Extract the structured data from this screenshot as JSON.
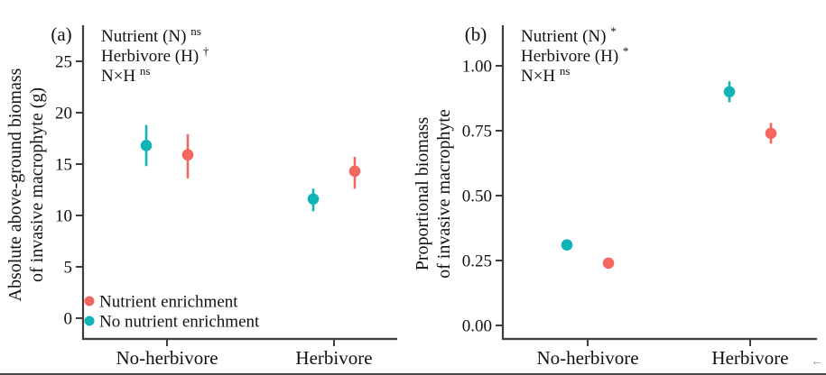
{
  "figure": {
    "bg": "#ffffff",
    "axis_color": "#3d3d3d",
    "text_color": "#121212",
    "bottom_edge_color": "#4a4a4a",
    "cursor_mark": "←"
  },
  "palette": {
    "enriched": "#f4675e",
    "control": "#12b3b6"
  },
  "legend": {
    "position": "inside bottom-left of panel a",
    "items": [
      {
        "key": "enriched",
        "label": "Nutrient enrichment"
      },
      {
        "key": "control",
        "label": "No nutrient enrichment"
      }
    ]
  },
  "chart_data": [
    {
      "type": "scatter",
      "panel_tag": "(a)",
      "title": "",
      "ylabel": "Absolute above-ground biomass of invasive macrophyte (g)",
      "ylabel_lines": [
        "Absolute above-ground biomass",
        "of invasive macrophyte (g)"
      ],
      "xlabel": "",
      "annotations": [
        {
          "text": "Nutrient (N)",
          "sup": "ns"
        },
        {
          "text": "Herbivore (H)",
          "sup": "†"
        },
        {
          "text": "N×H",
          "sup": "ns"
        }
      ],
      "categories": [
        "No-herbivore",
        "Herbivore"
      ],
      "yticks": [
        0,
        5,
        10,
        15,
        20,
        25
      ],
      "ytick_labels": [
        "0",
        "5",
        "10",
        "15",
        "20",
        "25"
      ],
      "ylim": [
        0,
        28
      ],
      "grid": false,
      "show_legend": true,
      "series": [
        {
          "name": "No nutrient enrichment",
          "key": "control",
          "values": [
            16.8,
            11.6
          ],
          "ci_low": [
            14.8,
            10.4
          ],
          "ci_high": [
            18.8,
            12.6
          ]
        },
        {
          "name": "Nutrient enrichment",
          "key": "enriched",
          "values": [
            15.9,
            14.3
          ],
          "ci_low": [
            13.6,
            12.6
          ],
          "ci_high": [
            17.9,
            15.7
          ]
        }
      ]
    },
    {
      "type": "scatter",
      "panel_tag": "(b)",
      "title": "",
      "ylabel": "Proportional biomass of invasive macrophyte",
      "ylabel_lines": [
        "Proportional biomass",
        "of invasive macrophyte"
      ],
      "xlabel": "",
      "annotations": [
        {
          "text": "Nutrient (N)",
          "sup": "*"
        },
        {
          "text": "Herbivore (H)",
          "sup": "*"
        },
        {
          "text": "N×H",
          "sup": "ns"
        }
      ],
      "categories": [
        "No-herbivore",
        "Herbivore"
      ],
      "yticks": [
        0,
        0.25,
        0.5,
        0.75,
        1
      ],
      "ytick_labels": [
        "0.00",
        "0.25",
        "0.50",
        "0.75",
        "1.00"
      ],
      "ylim": [
        0,
        1.15
      ],
      "grid": false,
      "show_legend": false,
      "series": [
        {
          "name": "No nutrient enrichment",
          "key": "control",
          "values": [
            0.31,
            0.9
          ],
          "ci_low": [
            0.295,
            0.86
          ],
          "ci_high": [
            0.33,
            0.94
          ]
        },
        {
          "name": "Nutrient enrichment",
          "key": "enriched",
          "values": [
            0.24,
            0.74
          ],
          "ci_low": [
            0.22,
            0.7
          ],
          "ci_high": [
            0.26,
            0.78
          ]
        }
      ]
    }
  ]
}
